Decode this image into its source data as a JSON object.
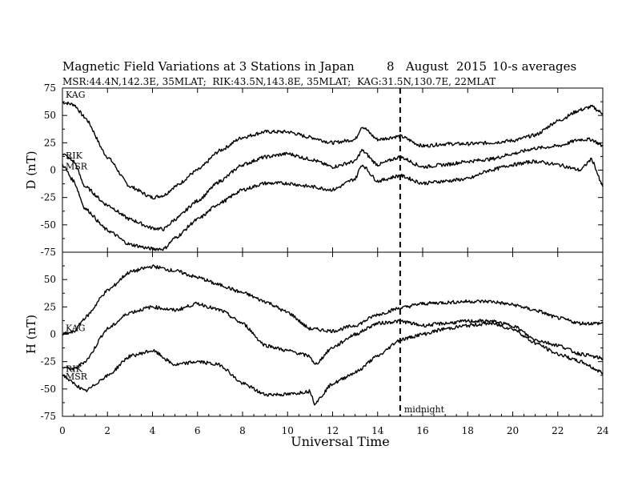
{
  "chart_data": {
    "type": "line",
    "title": "Magnetic Field Variations at 3 Stations in Japan",
    "date": "8   August  2015",
    "averaging": "10-s averages",
    "subtitle": "MSR:44.4N,142.3E, 35MLAT;  RIK:43.5N,143.8E, 35MLAT;  KAG:31.5N,130.7E, 22MLAT",
    "xlabel": "Universal Time",
    "xlim": [
      0,
      24
    ],
    "x_ticks": [
      "0",
      "2",
      "4",
      "6",
      "8",
      "10",
      "12",
      "14",
      "16",
      "18",
      "20",
      "22",
      "24"
    ],
    "grid": false,
    "annotations": [
      {
        "text": "midnight",
        "x": 15
      }
    ],
    "panels": [
      {
        "ylabel": "D (nT)",
        "ylim": [
          -75,
          75
        ],
        "y_ticks": [
          "75",
          "50",
          "25",
          "0",
          "-25",
          "-50",
          "-75"
        ],
        "series": [
          {
            "name": "KAG",
            "x": [
              0,
              0.5,
              1,
              2,
              3,
              4,
              4.5,
              5,
              6,
              7,
              8,
              9,
              10,
              11,
              12,
              13,
              13.3,
              14,
              15,
              16,
              17,
              18,
              19,
              20,
              21,
              22,
              23,
              23.5,
              24
            ],
            "values": [
              62,
              60,
              48,
              12,
              -15,
              -25,
              -23,
              -15,
              0,
              18,
              30,
              35,
              35,
              30,
              25,
              28,
              40,
              28,
              31,
              22,
              24,
              24,
              25,
              27,
              32,
              45,
              55,
              58,
              52
            ]
          },
          {
            "name": "RIK",
            "x": [
              0,
              0.5,
              1,
              2,
              3,
              4,
              4.5,
              5,
              6,
              7,
              8,
              9,
              10,
              11,
              12,
              13,
              13.3,
              14,
              15,
              16,
              17,
              18,
              19,
              20,
              21,
              22,
              23,
              23.5,
              24
            ],
            "values": [
              15,
              8,
              -15,
              -32,
              -45,
              -53,
              -54,
              -45,
              -28,
              -10,
              5,
              12,
              15,
              10,
              3,
              8,
              18,
              5,
              12,
              3,
              5,
              8,
              10,
              15,
              20,
              22,
              28,
              28,
              22
            ]
          },
          {
            "name": "MSR",
            "x": [
              0,
              0.5,
              1,
              2,
              3,
              4,
              4.5,
              5,
              6,
              7,
              8,
              9,
              10,
              11,
              12,
              13,
              13.3,
              14,
              15,
              16,
              17,
              18,
              19,
              20,
              21,
              22,
              23,
              23.5,
              24
            ],
            "values": [
              5,
              -10,
              -35,
              -55,
              -68,
              -72,
              -72,
              -62,
              -45,
              -30,
              -18,
              -12,
              -12,
              -15,
              -18,
              -8,
              5,
              -10,
              -5,
              -12,
              -10,
              -8,
              0,
              5,
              8,
              5,
              0,
              10,
              -15
            ]
          }
        ]
      },
      {
        "ylabel": "H (nT)",
        "ylim": [
          -75,
          75
        ],
        "y_ticks": [
          "75",
          "50",
          "25",
          "0",
          "-25",
          "-50",
          "-75"
        ],
        "series": [
          {
            "name": "KAG",
            "x": [
              0,
              0.5,
              1,
              2,
              3,
              4,
              5,
              6,
              7,
              8,
              9,
              10,
              11,
              12,
              13,
              14,
              15,
              16,
              17,
              18,
              19,
              20,
              21,
              22,
              23,
              24
            ],
            "values": [
              0,
              2,
              15,
              40,
              57,
              62,
              58,
              52,
              45,
              38,
              30,
              20,
              5,
              3,
              8,
              18,
              24,
              28,
              29,
              30,
              30,
              27,
              22,
              15,
              10,
              10
            ]
          },
          {
            "name": "RIK",
            "x": [
              0,
              0.5,
              1,
              2,
              3,
              4,
              5,
              6,
              7,
              8,
              9,
              10,
              11,
              11.2,
              12,
              13,
              14,
              15,
              16,
              17,
              18,
              19,
              20,
              21,
              22,
              23,
              24
            ],
            "values": [
              -30,
              -32,
              -25,
              5,
              20,
              25,
              22,
              28,
              22,
              10,
              -10,
              -15,
              -20,
              -28,
              -12,
              0,
              10,
              12,
              8,
              10,
              12,
              12,
              8,
              -5,
              -10,
              -18,
              -22
            ]
          },
          {
            "name": "MSR",
            "x": [
              0,
              0.5,
              1,
              2,
              3,
              4,
              5,
              6,
              7,
              8,
              9,
              10,
              11,
              11.2,
              12,
              13,
              14,
              15,
              16,
              17,
              18,
              19,
              20,
              21,
              22,
              23,
              24
            ],
            "values": [
              -37,
              -45,
              -52,
              -38,
              -20,
              -15,
              -28,
              -25,
              -28,
              -45,
              -55,
              -55,
              -52,
              -63,
              -45,
              -35,
              -20,
              -5,
              0,
              5,
              8,
              10,
              5,
              -8,
              -18,
              -25,
              -35
            ]
          }
        ]
      }
    ]
  }
}
